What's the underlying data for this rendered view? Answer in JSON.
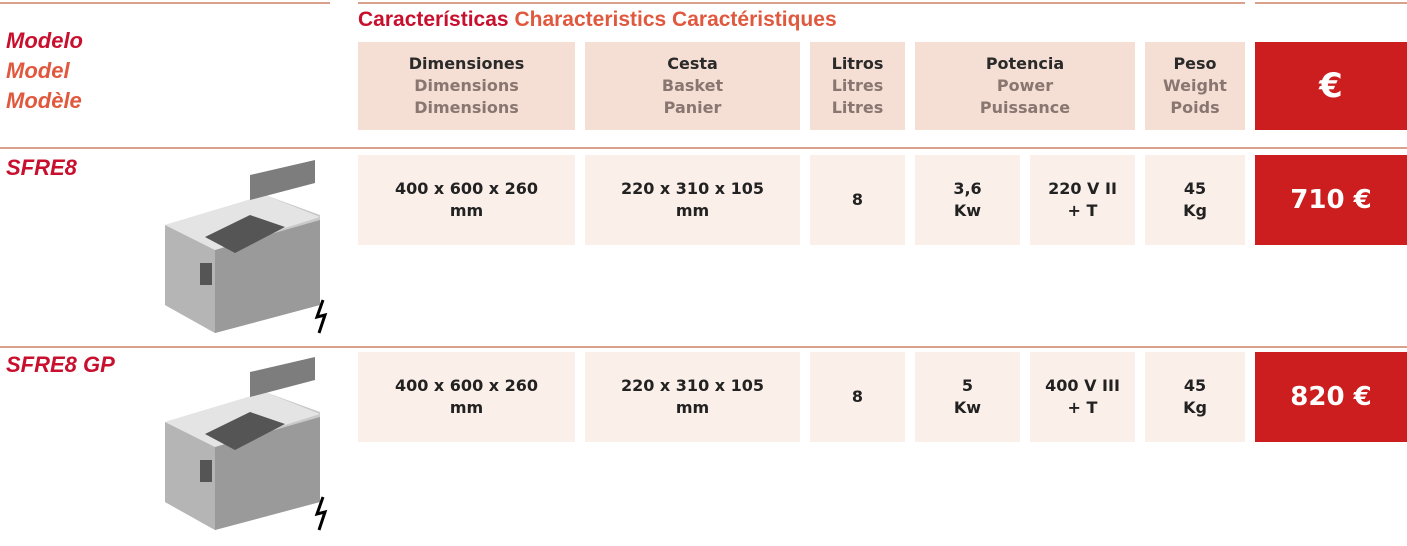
{
  "models_header": [
    "Modelo",
    "Model",
    "Modèle"
  ],
  "characteristics_title": [
    "Características",
    "Characteristics",
    "Caractéristiques"
  ],
  "columns": [
    [
      "Dimensiones",
      "Dimensions",
      "Dimensions"
    ],
    [
      "Cesta",
      "Basket",
      "Panier"
    ],
    [
      "Litros",
      "Litres",
      "Litres"
    ],
    [
      "Potencia",
      "Power",
      "Puissance"
    ],
    [
      "Peso",
      "Weight",
      "Poids"
    ]
  ],
  "currency": "€",
  "rows": [
    {
      "model": "SFRE8",
      "dimensions": [
        "400 x 600 x 260",
        "mm"
      ],
      "basket": [
        "220 x 310 x 105",
        "mm"
      ],
      "litres": "8",
      "power": [
        "3,6",
        "Kw"
      ],
      "voltage": [
        "220 V II",
        "+ T"
      ],
      "weight": [
        "45",
        "Kg"
      ],
      "price": "710 €"
    },
    {
      "model": "SFRE8 GP",
      "dimensions": [
        "400 x 600 x 260",
        "mm"
      ],
      "basket": [
        "220 x 310 x 105",
        "mm"
      ],
      "litres": "8",
      "power": [
        "5",
        "Kw"
      ],
      "voltage": [
        "400 V III",
        "+ T"
      ],
      "weight": [
        "45",
        "Kg"
      ],
      "price": "820 €"
    }
  ]
}
